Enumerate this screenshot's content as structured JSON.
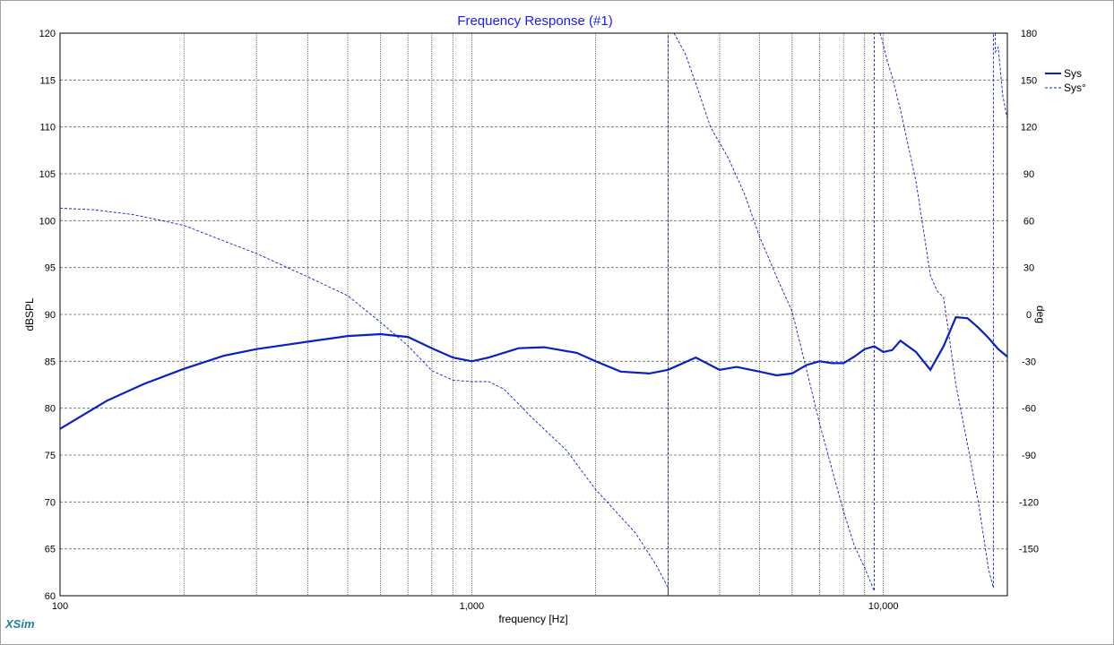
{
  "chart_data": {
    "type": "line",
    "title": "Frequency Response (#1)",
    "xlabel": "frequency [Hz]",
    "ylabel": "dBSPL",
    "y2label": "deg",
    "xscale": "log",
    "xlim": [
      100,
      20000
    ],
    "ylim": [
      60,
      120
    ],
    "y2lim": [
      -180,
      180
    ],
    "x_tick_labels": [
      {
        "x": 100,
        "label": "100"
      },
      {
        "x": 1000,
        "label": "1,000"
      },
      {
        "x": 10000,
        "label": "10,000"
      }
    ],
    "y_ticks": [
      60,
      65,
      70,
      75,
      80,
      85,
      90,
      95,
      100,
      105,
      110,
      115,
      120
    ],
    "y2_ticks": [
      -150,
      -120,
      -90,
      -60,
      -30,
      0,
      30,
      60,
      90,
      120,
      150,
      180
    ],
    "grid": true,
    "legend_position": "top-right",
    "series": [
      {
        "name": "Sys",
        "axis": "left",
        "style": "solid",
        "x": [
          100,
          130,
          160,
          200,
          250,
          300,
          400,
          500,
          600,
          700,
          800,
          900,
          1000,
          1100,
          1300,
          1500,
          1800,
          2000,
          2300,
          2700,
          3000,
          3500,
          4000,
          4400,
          5000,
          5500,
          6000,
          6500,
          7000,
          7500,
          8000,
          8500,
          9000,
          9500,
          10000,
          10500,
          11000,
          12000,
          13000,
          14000,
          15000,
          16000,
          17000,
          18000,
          19000,
          20000
        ],
        "values": [
          77.8,
          80.8,
          82.6,
          84.2,
          85.6,
          86.3,
          87.1,
          87.7,
          87.9,
          87.6,
          86.4,
          85.4,
          85.0,
          85.4,
          86.4,
          86.5,
          85.9,
          85.0,
          83.9,
          83.7,
          84.1,
          85.4,
          84.1,
          84.4,
          83.9,
          83.5,
          83.7,
          84.6,
          85.0,
          84.8,
          84.8,
          85.5,
          86.3,
          86.6,
          86.0,
          86.2,
          87.2,
          86.0,
          84.1,
          86.6,
          89.7,
          89.6,
          88.6,
          87.5,
          86.3,
          85.5
        ]
      },
      {
        "name": "Sys°",
        "axis": "right",
        "style": "dashed",
        "x": [
          100,
          120,
          150,
          200,
          250,
          300,
          400,
          500,
          600,
          700,
          800,
          900,
          1000,
          1100,
          1200,
          1400,
          1700,
          2000,
          2500,
          2800,
          3000,
          3100,
          3300,
          3500,
          3800,
          4200,
          4600,
          5000,
          5500,
          6000,
          6500,
          7000,
          7500,
          8000,
          8500,
          9000,
          9500,
          9800,
          9900,
          10000,
          10200,
          10500,
          11000,
          12000,
          13000,
          13500,
          14000,
          14500,
          15000,
          16000,
          17000,
          18000,
          18500,
          18700,
          19000,
          19500,
          20000
        ],
        "values": [
          68,
          67,
          64,
          57,
          47,
          39,
          24,
          12,
          -5,
          -20,
          -36,
          -42,
          -43,
          -43,
          -48,
          -66,
          -87,
          -112,
          -140,
          -160,
          -175,
          180,
          167,
          148,
          120,
          100,
          77,
          50,
          24,
          2,
          -35,
          -70,
          -99,
          -126,
          -148,
          -162,
          -177,
          180,
          177,
          172,
          163,
          152,
          131,
          85,
          25,
          15,
          11,
          -17,
          -45,
          -83,
          -120,
          -163,
          -175,
          168,
          171,
          140,
          125
        ]
      }
    ]
  },
  "legend": [
    {
      "label": "Sys",
      "style": "solid"
    },
    {
      "label": "Sys°",
      "style": "dashed"
    }
  ],
  "brand": "XSim",
  "colors": {
    "series": "#0a1fc8",
    "title": "#1a1aff",
    "grid": "#000000",
    "brand": "#1f7fa0"
  }
}
